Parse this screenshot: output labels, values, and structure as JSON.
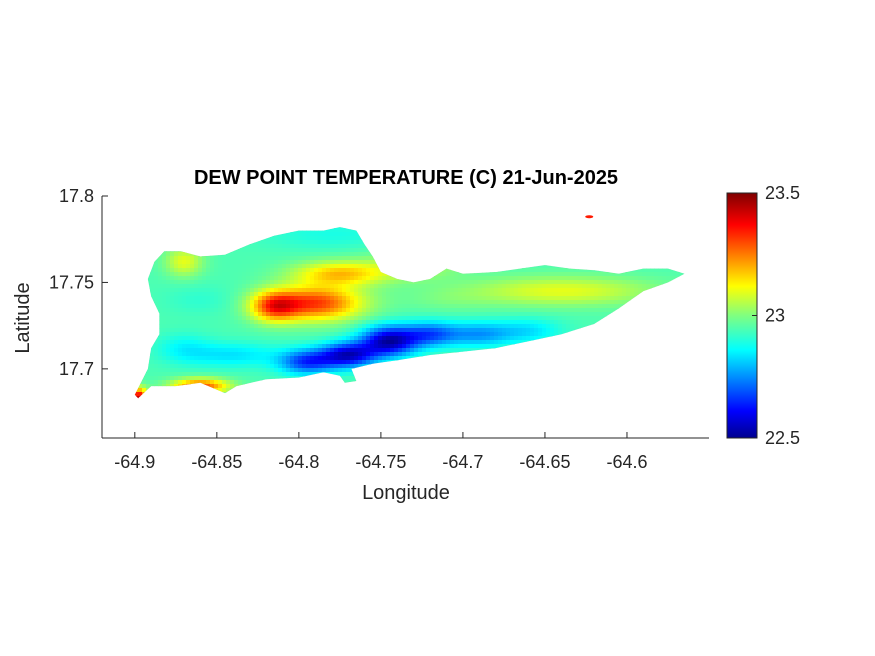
{
  "chart_data": {
    "type": "heatmap",
    "title": "DEW POINT TEMPERATURE (C) 21-Jun-2025",
    "xlabel": "Longitude",
    "ylabel": "Latitude",
    "xlim": [
      -64.92,
      -64.55
    ],
    "ylim": [
      17.66,
      17.8
    ],
    "x_ticks": [
      -64.9,
      -64.85,
      -64.8,
      -64.75,
      -64.7,
      -64.65,
      -64.6
    ],
    "x_tick_labels": [
      "-64.9",
      "-64.85",
      "-64.8",
      "-64.75",
      "-64.7",
      "-64.65",
      "-64.6"
    ],
    "y_ticks": [
      17.7,
      17.75,
      17.8
    ],
    "y_tick_labels": [
      "17.7",
      "17.75",
      "17.8"
    ],
    "colorbar": {
      "colormap": "jet",
      "range": [
        22.5,
        23.5
      ],
      "ticks": [
        22.5,
        23,
        23.5
      ],
      "tick_labels": [
        "22.5",
        "23",
        "23.5"
      ]
    },
    "background_value": 22.95,
    "features": [
      {
        "lon": -64.79,
        "lat": 17.738,
        "value": 23.32,
        "sx": 0.02,
        "sy": 0.007
      },
      {
        "lon": -64.815,
        "lat": 17.736,
        "value": 23.25,
        "sx": 0.01,
        "sy": 0.006
      },
      {
        "lon": -64.775,
        "lat": 17.755,
        "value": 23.18,
        "sx": 0.02,
        "sy": 0.005
      },
      {
        "lon": -64.745,
        "lat": 17.716,
        "value": 22.55,
        "sx": 0.012,
        "sy": 0.006
      },
      {
        "lon": -64.77,
        "lat": 17.708,
        "value": 22.58,
        "sx": 0.012,
        "sy": 0.005
      },
      {
        "lon": -64.795,
        "lat": 17.704,
        "value": 22.68,
        "sx": 0.012,
        "sy": 0.005
      },
      {
        "lon": -64.72,
        "lat": 17.72,
        "value": 22.72,
        "sx": 0.012,
        "sy": 0.005
      },
      {
        "lon": -64.69,
        "lat": 17.72,
        "value": 22.78,
        "sx": 0.014,
        "sy": 0.005
      },
      {
        "lon": -64.66,
        "lat": 17.722,
        "value": 22.85,
        "sx": 0.014,
        "sy": 0.005
      },
      {
        "lon": -64.84,
        "lat": 17.708,
        "value": 22.85,
        "sx": 0.02,
        "sy": 0.005
      },
      {
        "lon": -64.87,
        "lat": 17.712,
        "value": 22.88,
        "sx": 0.012,
        "sy": 0.006
      },
      {
        "lon": -64.86,
        "lat": 17.69,
        "value": 23.3,
        "sx": 0.012,
        "sy": 0.003
      },
      {
        "lon": -64.898,
        "lat": 17.683,
        "value": 23.45,
        "sx": 0.004,
        "sy": 0.004
      },
      {
        "lon": -64.87,
        "lat": 17.762,
        "value": 23.1,
        "sx": 0.008,
        "sy": 0.006
      },
      {
        "lon": -64.78,
        "lat": 17.778,
        "value": 22.9,
        "sx": 0.03,
        "sy": 0.006
      },
      {
        "lon": -64.73,
        "lat": 17.76,
        "value": 23.05,
        "sx": 0.02,
        "sy": 0.006
      },
      {
        "lon": -64.64,
        "lat": 17.745,
        "value": 23.1,
        "sx": 0.04,
        "sy": 0.006
      },
      {
        "lon": -64.58,
        "lat": 17.752,
        "value": 22.95,
        "sx": 0.015,
        "sy": 0.004
      },
      {
        "lon": -64.71,
        "lat": 17.74,
        "value": 22.98,
        "sx": 0.02,
        "sy": 0.005
      },
      {
        "lon": -64.86,
        "lat": 17.74,
        "value": 22.92,
        "sx": 0.015,
        "sy": 0.006
      }
    ],
    "island_outline": [
      [
        -64.898,
        17.683
      ],
      [
        -64.89,
        17.69
      ],
      [
        -64.875,
        17.69
      ],
      [
        -64.86,
        17.692
      ],
      [
        -64.845,
        17.686
      ],
      [
        -64.838,
        17.69
      ],
      [
        -64.82,
        17.694
      ],
      [
        -64.8,
        17.695
      ],
      [
        -64.785,
        17.698
      ],
      [
        -64.775,
        17.696
      ],
      [
        -64.772,
        17.692
      ],
      [
        -64.765,
        17.693
      ],
      [
        -64.768,
        17.7
      ],
      [
        -64.755,
        17.703
      ],
      [
        -64.74,
        17.705
      ],
      [
        -64.72,
        17.708
      ],
      [
        -64.7,
        17.71
      ],
      [
        -64.68,
        17.712
      ],
      [
        -64.66,
        17.716
      ],
      [
        -64.64,
        17.72
      ],
      [
        -64.62,
        17.726
      ],
      [
        -64.605,
        17.735
      ],
      [
        -64.59,
        17.745
      ],
      [
        -64.575,
        17.75
      ],
      [
        -64.565,
        17.755
      ],
      [
        -64.575,
        17.758
      ],
      [
        -64.59,
        17.758
      ],
      [
        -64.605,
        17.755
      ],
      [
        -64.62,
        17.757
      ],
      [
        -64.635,
        17.758
      ],
      [
        -64.65,
        17.76
      ],
      [
        -64.665,
        17.758
      ],
      [
        -64.68,
        17.756
      ],
      [
        -64.7,
        17.755
      ],
      [
        -64.71,
        17.758
      ],
      [
        -64.72,
        17.752
      ],
      [
        -64.73,
        17.75
      ],
      [
        -64.74,
        17.752
      ],
      [
        -64.75,
        17.756
      ],
      [
        -64.755,
        17.765
      ],
      [
        -64.76,
        17.772
      ],
      [
        -64.765,
        17.78
      ],
      [
        -64.775,
        17.782
      ],
      [
        -64.785,
        17.78
      ],
      [
        -64.8,
        17.78
      ],
      [
        -64.815,
        17.777
      ],
      [
        -64.83,
        17.772
      ],
      [
        -64.845,
        17.766
      ],
      [
        -64.86,
        17.765
      ],
      [
        -64.872,
        17.768
      ],
      [
        -64.882,
        17.768
      ],
      [
        -64.888,
        17.762
      ],
      [
        -64.892,
        17.752
      ],
      [
        -64.89,
        17.742
      ],
      [
        -64.885,
        17.732
      ],
      [
        -64.885,
        17.72
      ],
      [
        -64.89,
        17.712
      ],
      [
        -64.892,
        17.7
      ],
      [
        -64.9,
        17.685
      ]
    ],
    "small_islet": {
      "lon": -64.623,
      "lat": 17.788,
      "value": 23.35
    }
  }
}
